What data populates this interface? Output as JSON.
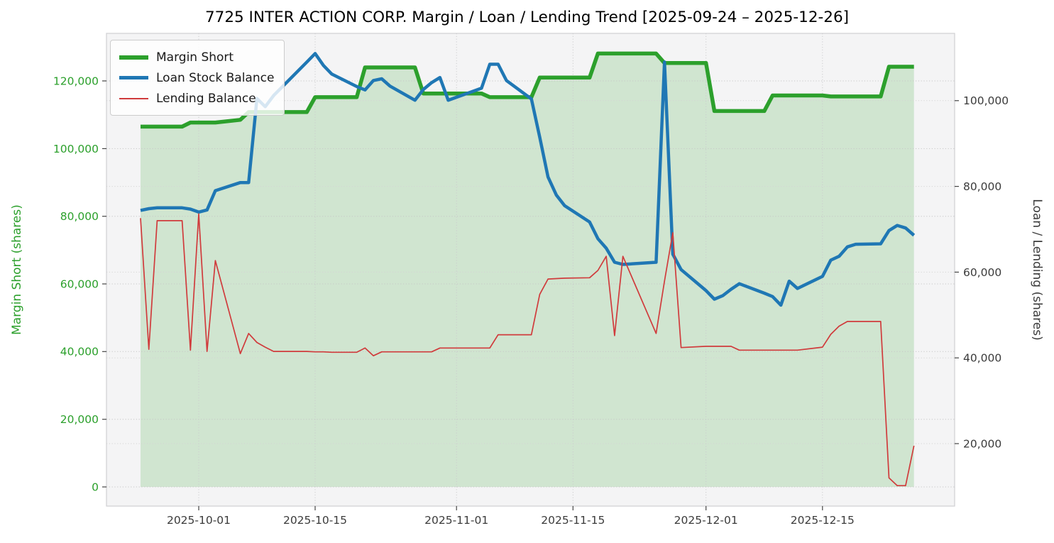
{
  "title": "7725 INTER ACTION CORP. Margin / Loan / Lending Trend [2025-09-24 – 2025-12-26]",
  "chart_data": {
    "type": "line",
    "title": "7725 INTER ACTION CORP. Margin / Loan / Lending Trend [2025-09-24 – 2025-12-26]",
    "date_range": {
      "start": "2025-09-24",
      "end": "2025-12-26"
    },
    "grid": true,
    "legend_position": "upper-left",
    "x_dates": [
      "2025-09-24",
      "2025-09-25",
      "2025-09-26",
      "2025-09-29",
      "2025-09-30",
      "2025-10-01",
      "2025-10-02",
      "2025-10-03",
      "2025-10-06",
      "2025-10-07",
      "2025-10-08",
      "2025-10-09",
      "2025-10-10",
      "2025-10-14",
      "2025-10-15",
      "2025-10-16",
      "2025-10-17",
      "2025-10-20",
      "2025-10-21",
      "2025-10-22",
      "2025-10-23",
      "2025-10-24",
      "2025-10-27",
      "2025-10-28",
      "2025-10-29",
      "2025-10-30",
      "2025-10-31",
      "2025-11-04",
      "2025-11-05",
      "2025-11-06",
      "2025-11-07",
      "2025-11-10",
      "2025-11-11",
      "2025-11-12",
      "2025-11-13",
      "2025-11-14",
      "2025-11-17",
      "2025-11-18",
      "2025-11-19",
      "2025-11-20",
      "2025-11-21",
      "2025-11-25",
      "2025-11-26",
      "2025-11-27",
      "2025-11-28",
      "2025-12-01",
      "2025-12-02",
      "2025-12-03",
      "2025-12-04",
      "2025-12-05",
      "2025-12-08",
      "2025-12-09",
      "2025-12-10",
      "2025-12-11",
      "2025-12-12",
      "2025-12-15",
      "2025-12-16",
      "2025-12-17",
      "2025-12-18",
      "2025-12-19",
      "2025-12-22",
      "2025-12-23",
      "2025-12-24",
      "2025-12-25",
      "2025-12-26"
    ],
    "series": [
      {
        "name": "Margin Short",
        "axis": "left",
        "color": "#2ca02c",
        "line_width": 5.5,
        "area_fill": true,
        "fill_opacity": 0.18,
        "values": [
          106500,
          106500,
          106500,
          106500,
          107700,
          107700,
          107700,
          107700,
          108500,
          110800,
          110800,
          110800,
          110800,
          110800,
          115200,
          115200,
          115200,
          115200,
          124000,
          124000,
          124000,
          124000,
          124000,
          116300,
          116300,
          116300,
          116300,
          116300,
          115200,
          115200,
          115200,
          115200,
          121000,
          121000,
          121000,
          121000,
          121000,
          128100,
          128100,
          128100,
          128100,
          128100,
          125300,
          125300,
          125300,
          125300,
          111100,
          111100,
          111100,
          111100,
          111100,
          115700,
          115700,
          115700,
          115700,
          115700,
          115400,
          115400,
          115400,
          115400,
          115400,
          124200,
          124200,
          124200,
          124200
        ]
      },
      {
        "name": "Loan Stock Balance",
        "axis": "right",
        "color": "#1f77b4",
        "line_width": 4.5,
        "area_fill": false,
        "values": [
          74400,
          74800,
          75000,
          75000,
          74700,
          74000,
          74500,
          79000,
          80900,
          80900,
          100500,
          98600,
          101200,
          109000,
          111000,
          108200,
          106200,
          103300,
          102500,
          104700,
          105100,
          103400,
          100100,
          102600,
          104200,
          105400,
          100100,
          102900,
          108500,
          108500,
          104700,
          100400,
          91500,
          82200,
          78000,
          75500,
          71700,
          67800,
          65600,
          62300,
          61800,
          62300,
          109000,
          64200,
          60600,
          55700,
          53700,
          54500,
          56000,
          57300,
          55100,
          54300,
          52300,
          57900,
          56200,
          59000,
          62800,
          63700,
          65900,
          66500,
          66600,
          69700,
          70900,
          70300,
          68600
        ]
      },
      {
        "name": "Lending Balance",
        "axis": "right",
        "color": "#d03b3c",
        "line_width": 1.7,
        "area_fill": false,
        "values": [
          72600,
          42000,
          72000,
          72000,
          41800,
          73600,
          41500,
          62700,
          41000,
          45700,
          43600,
          42500,
          41500,
          41500,
          41400,
          41400,
          41300,
          41300,
          42300,
          40500,
          41400,
          41400,
          41400,
          41400,
          41400,
          42300,
          42300,
          42300,
          42300,
          45400,
          45400,
          45400,
          54800,
          58400,
          58500,
          58600,
          58700,
          60400,
          63700,
          45200,
          63700,
          45700,
          57900,
          69200,
          42400,
          42700,
          42700,
          42700,
          42700,
          41800,
          41800,
          41800,
          41800,
          41800,
          41800,
          42500,
          45500,
          47400,
          48500,
          48500,
          48500,
          12000,
          10200,
          10200,
          19500
        ]
      }
    ],
    "left_axis": {
      "label": "Margin Short (shares)",
      "color": "#2ca02c",
      "tick_values": [
        0,
        20000,
        40000,
        60000,
        80000,
        100000,
        120000
      ],
      "range": [
        0,
        134000
      ]
    },
    "right_axis": {
      "label": "Loan / Lending (shares)",
      "color": "#3b3b3b",
      "tick_values": [
        20000,
        40000,
        60000,
        80000,
        100000
      ],
      "range": [
        7800,
        115700
      ]
    },
    "x_axis": {
      "tick_labels": [
        "2025-10-01",
        "2025-10-15",
        "2025-11-01",
        "2025-11-15",
        "2025-12-01",
        "2025-12-15"
      ]
    }
  }
}
